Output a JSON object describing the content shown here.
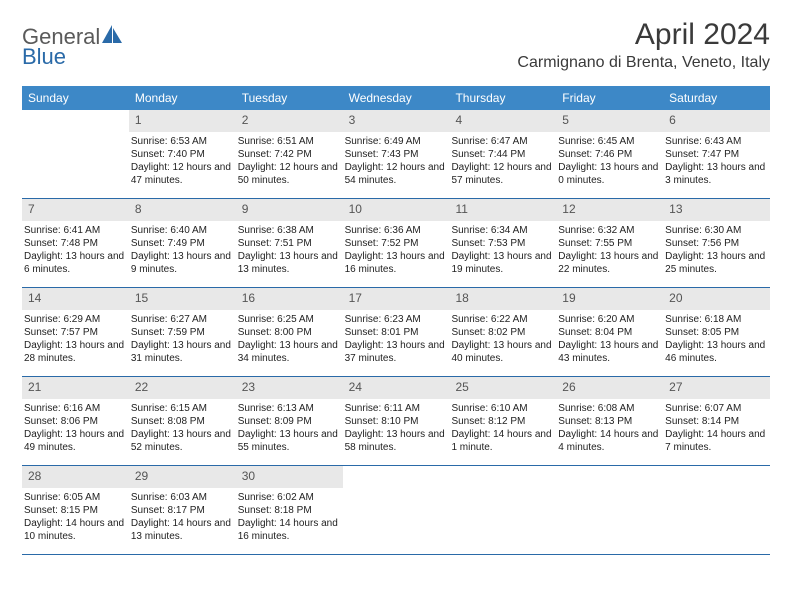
{
  "logo": {
    "general": "General",
    "blue": "Blue"
  },
  "title": "April 2024",
  "location": "Carmignano di Brenta, Veneto, Italy",
  "colors": {
    "header_bg": "#3d88c7",
    "header_text": "#ffffff",
    "daynum_bg": "#e8e8e8",
    "row_border": "#2a6aa8",
    "text": "#222222",
    "logo_general": "#5a5a5a",
    "logo_blue": "#2a6aa8"
  },
  "weekdays": [
    "Sunday",
    "Monday",
    "Tuesday",
    "Wednesday",
    "Thursday",
    "Friday",
    "Saturday"
  ],
  "weeks": [
    [
      null,
      {
        "n": "1",
        "sr": "6:53 AM",
        "ss": "7:40 PM",
        "dl": "12 hours and 47 minutes."
      },
      {
        "n": "2",
        "sr": "6:51 AM",
        "ss": "7:42 PM",
        "dl": "12 hours and 50 minutes."
      },
      {
        "n": "3",
        "sr": "6:49 AM",
        "ss": "7:43 PM",
        "dl": "12 hours and 54 minutes."
      },
      {
        "n": "4",
        "sr": "6:47 AM",
        "ss": "7:44 PM",
        "dl": "12 hours and 57 minutes."
      },
      {
        "n": "5",
        "sr": "6:45 AM",
        "ss": "7:46 PM",
        "dl": "13 hours and 0 minutes."
      },
      {
        "n": "6",
        "sr": "6:43 AM",
        "ss": "7:47 PM",
        "dl": "13 hours and 3 minutes."
      }
    ],
    [
      {
        "n": "7",
        "sr": "6:41 AM",
        "ss": "7:48 PM",
        "dl": "13 hours and 6 minutes."
      },
      {
        "n": "8",
        "sr": "6:40 AM",
        "ss": "7:49 PM",
        "dl": "13 hours and 9 minutes."
      },
      {
        "n": "9",
        "sr": "6:38 AM",
        "ss": "7:51 PM",
        "dl": "13 hours and 13 minutes."
      },
      {
        "n": "10",
        "sr": "6:36 AM",
        "ss": "7:52 PM",
        "dl": "13 hours and 16 minutes."
      },
      {
        "n": "11",
        "sr": "6:34 AM",
        "ss": "7:53 PM",
        "dl": "13 hours and 19 minutes."
      },
      {
        "n": "12",
        "sr": "6:32 AM",
        "ss": "7:55 PM",
        "dl": "13 hours and 22 minutes."
      },
      {
        "n": "13",
        "sr": "6:30 AM",
        "ss": "7:56 PM",
        "dl": "13 hours and 25 minutes."
      }
    ],
    [
      {
        "n": "14",
        "sr": "6:29 AM",
        "ss": "7:57 PM",
        "dl": "13 hours and 28 minutes."
      },
      {
        "n": "15",
        "sr": "6:27 AM",
        "ss": "7:59 PM",
        "dl": "13 hours and 31 minutes."
      },
      {
        "n": "16",
        "sr": "6:25 AM",
        "ss": "8:00 PM",
        "dl": "13 hours and 34 minutes."
      },
      {
        "n": "17",
        "sr": "6:23 AM",
        "ss": "8:01 PM",
        "dl": "13 hours and 37 minutes."
      },
      {
        "n": "18",
        "sr": "6:22 AM",
        "ss": "8:02 PM",
        "dl": "13 hours and 40 minutes."
      },
      {
        "n": "19",
        "sr": "6:20 AM",
        "ss": "8:04 PM",
        "dl": "13 hours and 43 minutes."
      },
      {
        "n": "20",
        "sr": "6:18 AM",
        "ss": "8:05 PM",
        "dl": "13 hours and 46 minutes."
      }
    ],
    [
      {
        "n": "21",
        "sr": "6:16 AM",
        "ss": "8:06 PM",
        "dl": "13 hours and 49 minutes."
      },
      {
        "n": "22",
        "sr": "6:15 AM",
        "ss": "8:08 PM",
        "dl": "13 hours and 52 minutes."
      },
      {
        "n": "23",
        "sr": "6:13 AM",
        "ss": "8:09 PM",
        "dl": "13 hours and 55 minutes."
      },
      {
        "n": "24",
        "sr": "6:11 AM",
        "ss": "8:10 PM",
        "dl": "13 hours and 58 minutes."
      },
      {
        "n": "25",
        "sr": "6:10 AM",
        "ss": "8:12 PM",
        "dl": "14 hours and 1 minute."
      },
      {
        "n": "26",
        "sr": "6:08 AM",
        "ss": "8:13 PM",
        "dl": "14 hours and 4 minutes."
      },
      {
        "n": "27",
        "sr": "6:07 AM",
        "ss": "8:14 PM",
        "dl": "14 hours and 7 minutes."
      }
    ],
    [
      {
        "n": "28",
        "sr": "6:05 AM",
        "ss": "8:15 PM",
        "dl": "14 hours and 10 minutes."
      },
      {
        "n": "29",
        "sr": "6:03 AM",
        "ss": "8:17 PM",
        "dl": "14 hours and 13 minutes."
      },
      {
        "n": "30",
        "sr": "6:02 AM",
        "ss": "8:18 PM",
        "dl": "14 hours and 16 minutes."
      },
      null,
      null,
      null,
      null
    ]
  ],
  "labels": {
    "sunrise": "Sunrise:",
    "sunset": "Sunset:",
    "daylight": "Daylight:"
  }
}
